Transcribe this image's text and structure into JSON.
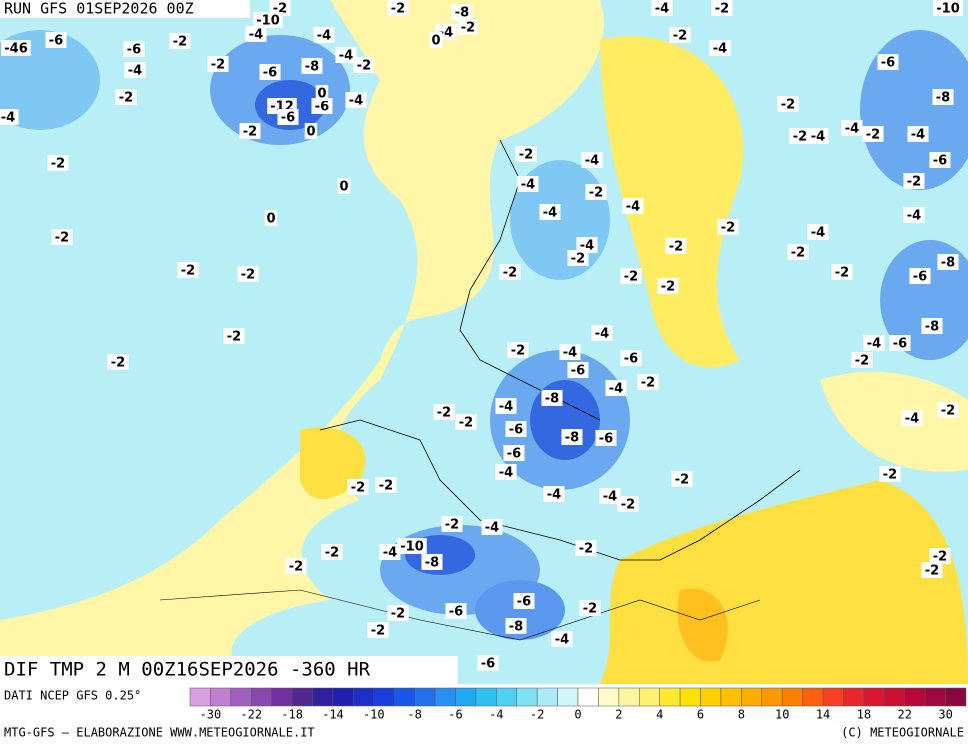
{
  "header": {
    "run": "RUN GFS 01SEP2026 00Z"
  },
  "map": {
    "field_label": "DIF TMP 2 M 00Z16SEP2026 -360 HR",
    "contour_labels": [
      -2,
      -2,
      -8,
      -4,
      -2,
      -10,
      -10,
      -2,
      -4,
      0,
      -46,
      -6,
      -6,
      -2,
      -4,
      -4,
      -2,
      -6,
      -8,
      -4,
      -2,
      -4,
      -2,
      -12,
      -6,
      -6,
      0,
      -4,
      0,
      -2,
      -4,
      -2,
      -4,
      -6,
      -8,
      -2,
      -2,
      -4,
      -4,
      -2,
      -4,
      -6,
      -2,
      -2,
      -4,
      0,
      -4,
      -2,
      -2,
      0,
      -4,
      -4,
      -4,
      -2,
      -2,
      -4,
      -4,
      -2,
      -2,
      -2,
      -2,
      -2,
      -2,
      -2,
      -6,
      -8,
      -2,
      -2,
      -2,
      -2,
      -4,
      -8,
      -2,
      -4,
      -6,
      -4,
      -6,
      -2,
      -6,
      -4,
      -2,
      -8,
      -4,
      -2,
      -2,
      -4,
      -2,
      -6,
      -8,
      -6,
      -6,
      -4,
      -2,
      -2,
      -2,
      -2,
      -4,
      -4,
      -2,
      -2,
      -4,
      -10,
      -4,
      -2,
      -8,
      -2,
      -2,
      -2,
      -2,
      -6,
      -6,
      -2,
      -2,
      -8,
      -2,
      -4,
      -6
    ]
  },
  "legend": {
    "source": "DATI NCEP GFS 0.25°",
    "colors": [
      "#d8a0e0",
      "#c080d0",
      "#a060c0",
      "#8848b0",
      "#7030a0",
      "#502890",
      "#3020a0",
      "#2020b0",
      "#1c30c8",
      "#1840d8",
      "#1858e8",
      "#2070f0",
      "#2890f0",
      "#20a8f0",
      "#30c0f0",
      "#50d0f0",
      "#80e0f4",
      "#a8ecf8",
      "#d0f6fa",
      "#ffffff",
      "#fffccc",
      "#fff4a0",
      "#fff070",
      "#ffe830",
      "#ffe000",
      "#ffd000",
      "#ffc000",
      "#ffac00",
      "#ff9800",
      "#ff8000",
      "#ff6010",
      "#f84020",
      "#e82828",
      "#d81830",
      "#c81030",
      "#b80838",
      "#a00840",
      "#880840"
    ],
    "ticks": [
      -30,
      -22,
      -18,
      -14,
      -10,
      -8,
      -6,
      -4,
      -2,
      0,
      2,
      4,
      6,
      8,
      10,
      14,
      18,
      22,
      30
    ]
  },
  "footer": {
    "left": "MTG-GFS — ELABORAZIONE WWW.METEOGIORNALE.IT",
    "right": "(C) METEOGIORNALE"
  }
}
